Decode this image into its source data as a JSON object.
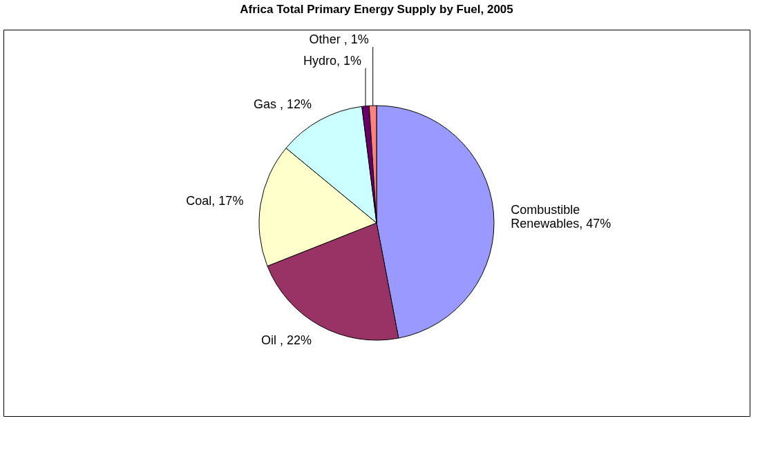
{
  "chart_data": {
    "type": "pie",
    "title": "Africa Total Primary Energy Supply by Fuel, 2005",
    "categories": [
      "Combustible Renewables, 47%",
      "Oil , 22%",
      "Coal, 17%",
      "Gas , 12%",
      "Hydro, 1%",
      "Other , 1%"
    ],
    "values": [
      47,
      22,
      17,
      12,
      1,
      1
    ],
    "colors": [
      "#9999ff",
      "#993366",
      "#ffffcc",
      "#ccffff",
      "#660066",
      "#ff8080"
    ]
  }
}
